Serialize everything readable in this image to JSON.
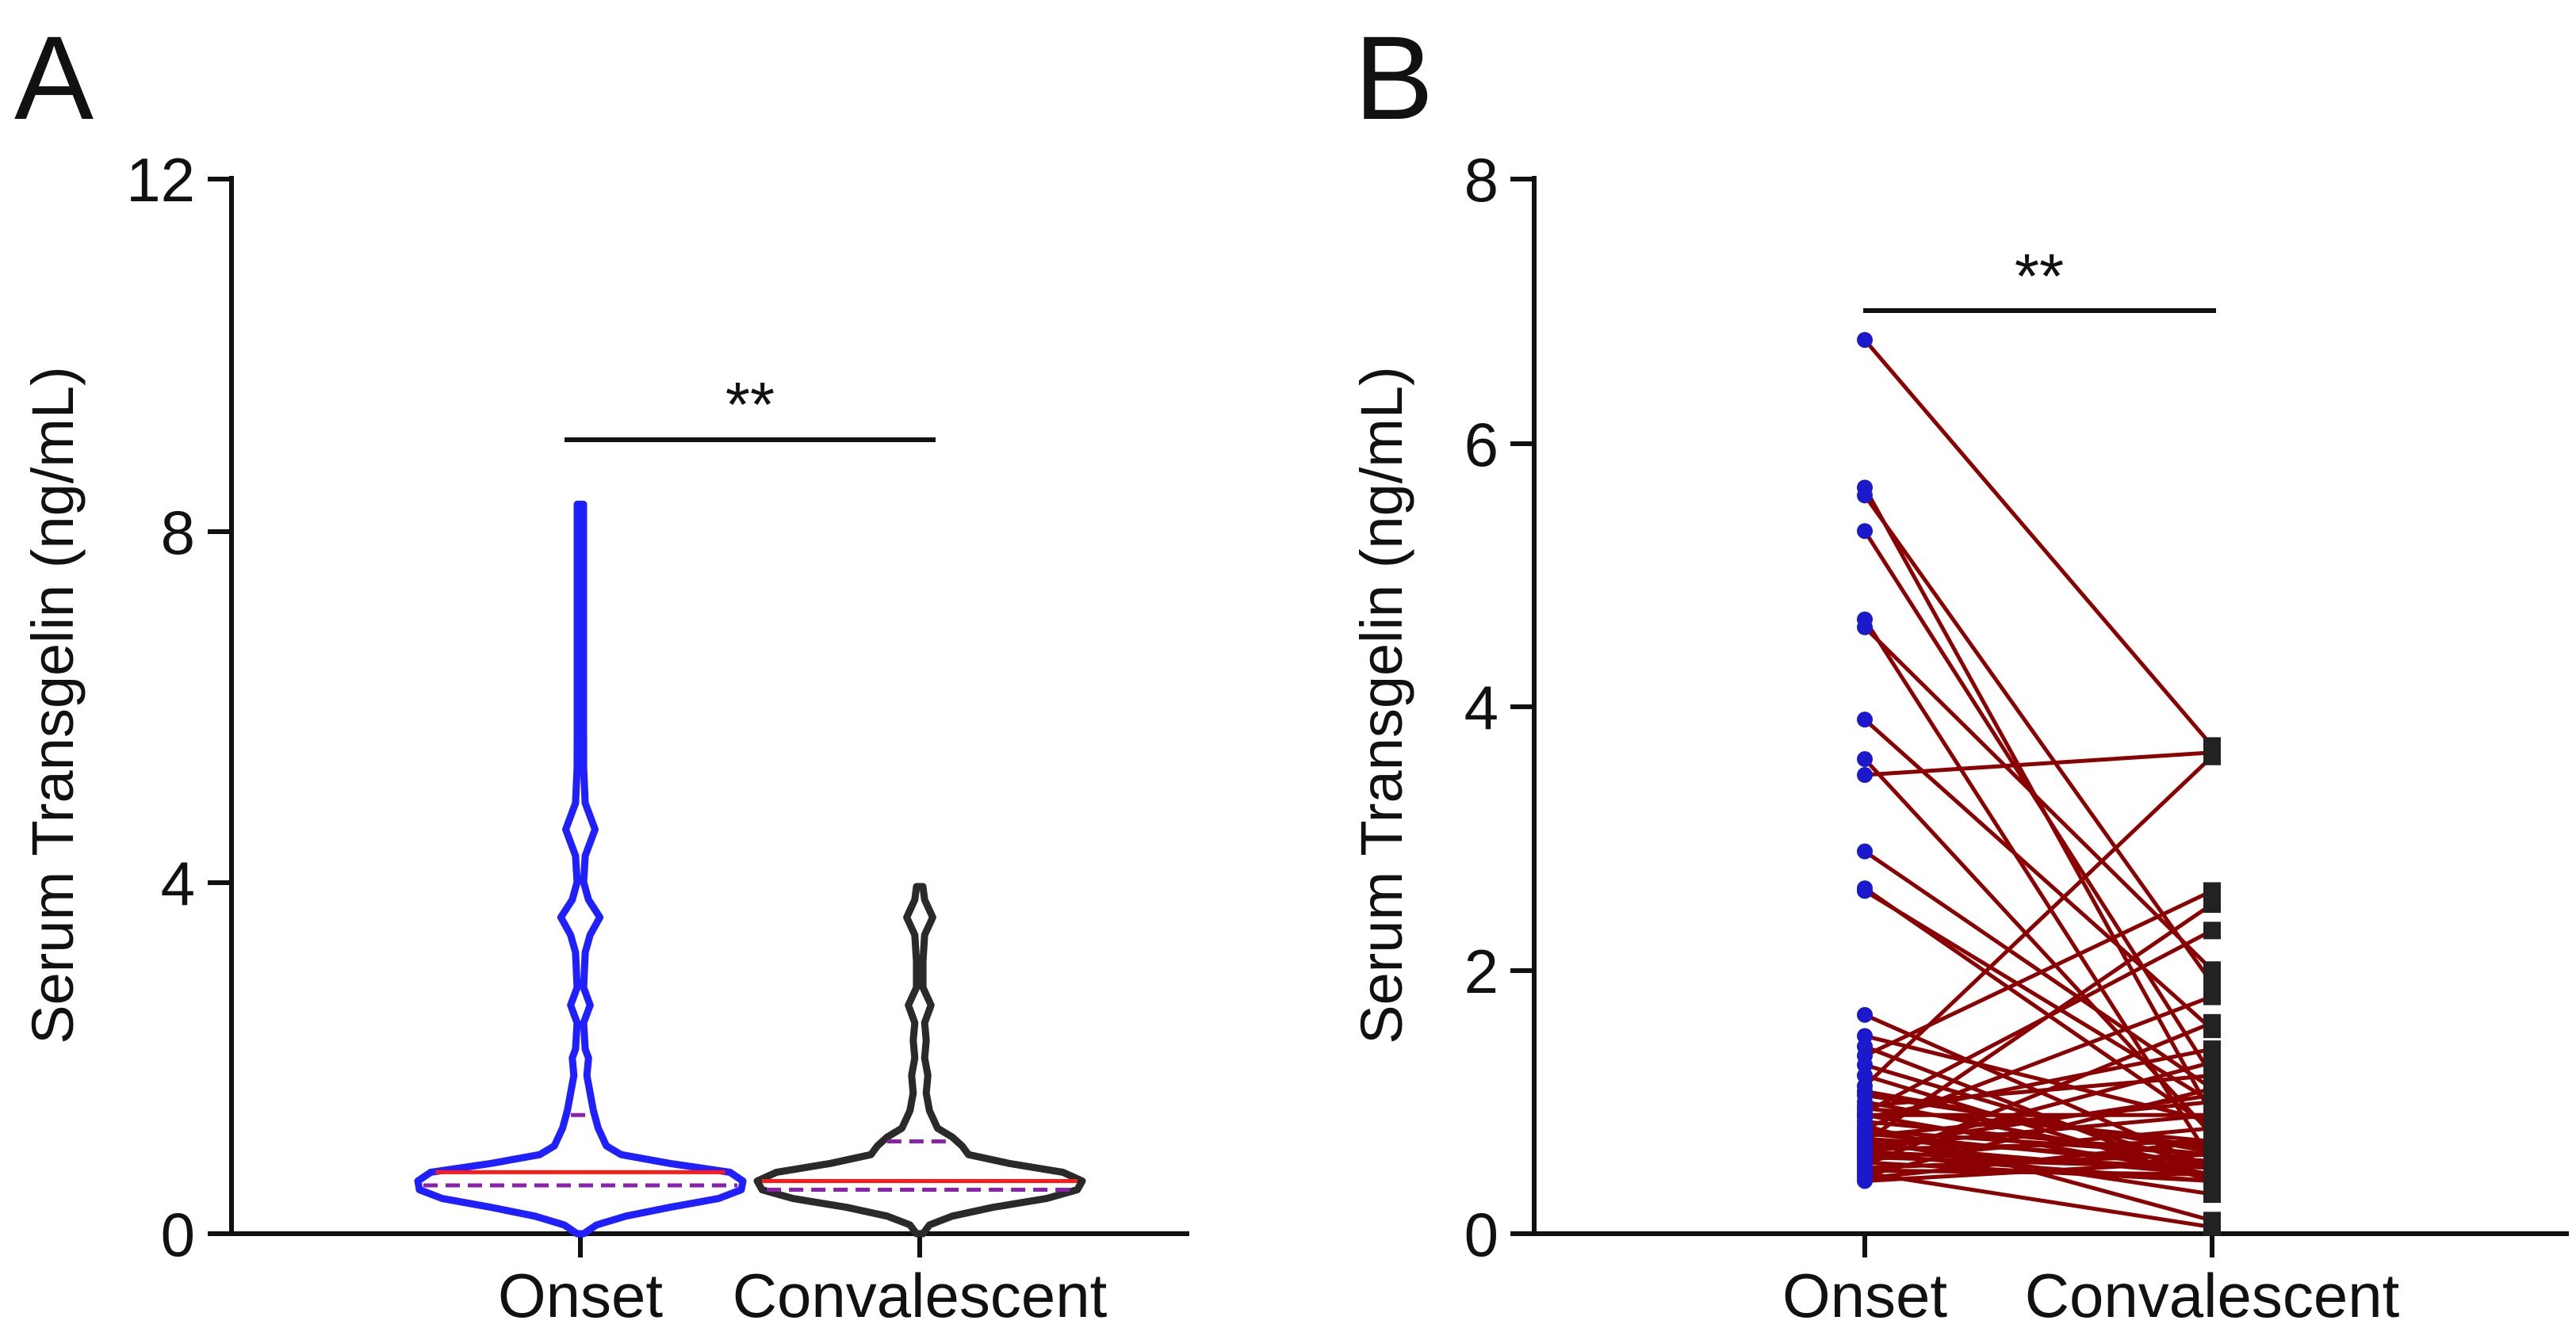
{
  "chart_data": [
    {
      "panel_label": "A",
      "type": "violin",
      "ylabel": "Serum Transgelin (ng/mL)",
      "xlabel": "",
      "ylim": [
        0,
        12
      ],
      "yticks": [
        "0",
        "4",
        "8",
        "12"
      ],
      "categories": [
        "Onset",
        "Convalescent"
      ],
      "significance": "**",
      "grid": false,
      "series": [
        {
          "name": "Onset",
          "color": "#1f1fff",
          "median": 0.7,
          "quartiles": [
            0.55,
            1.35
          ],
          "max": 8.3,
          "min": 0.0,
          "density_profile": [
            [
              0.0,
              0.02
            ],
            [
              0.1,
              0.1
            ],
            [
              0.2,
              0.28
            ],
            [
              0.3,
              0.55
            ],
            [
              0.4,
              0.85
            ],
            [
              0.5,
              0.99
            ],
            [
              0.6,
              1.0
            ],
            [
              0.7,
              0.92
            ],
            [
              0.8,
              0.55
            ],
            [
              0.9,
              0.25
            ],
            [
              1.0,
              0.16
            ],
            [
              1.2,
              0.11
            ],
            [
              1.4,
              0.08
            ],
            [
              1.6,
              0.06
            ],
            [
              1.8,
              0.04
            ],
            [
              2.0,
              0.05
            ],
            [
              2.1,
              0.03
            ],
            [
              2.4,
              0.02
            ],
            [
              2.6,
              0.06
            ],
            [
              2.8,
              0.02
            ],
            [
              3.2,
              0.03
            ],
            [
              3.4,
              0.06
            ],
            [
              3.6,
              0.12
            ],
            [
              3.8,
              0.05
            ],
            [
              4.0,
              0.02
            ],
            [
              4.3,
              0.03
            ],
            [
              4.6,
              0.09
            ],
            [
              4.9,
              0.03
            ],
            [
              5.3,
              0.02
            ],
            [
              5.8,
              0.015
            ],
            [
              6.5,
              0.015
            ],
            [
              7.2,
              0.012
            ],
            [
              8.0,
              0.012
            ],
            [
              8.3,
              0.01
            ]
          ]
        },
        {
          "name": "Convalescent",
          "color": "#2a2a2a",
          "median": 0.6,
          "quartiles": [
            0.5,
            1.05
          ],
          "max": 3.95,
          "min": 0.0,
          "density_profile": [
            [
              0.0,
              0.02
            ],
            [
              0.1,
              0.06
            ],
            [
              0.2,
              0.2
            ],
            [
              0.3,
              0.45
            ],
            [
              0.4,
              0.78
            ],
            [
              0.5,
              0.97
            ],
            [
              0.6,
              1.0
            ],
            [
              0.7,
              0.88
            ],
            [
              0.8,
              0.55
            ],
            [
              0.9,
              0.3
            ],
            [
              1.0,
              0.26
            ],
            [
              1.1,
              0.2
            ],
            [
              1.2,
              0.11
            ],
            [
              1.4,
              0.06
            ],
            [
              1.6,
              0.04
            ],
            [
              1.8,
              0.05
            ],
            [
              2.0,
              0.03
            ],
            [
              2.2,
              0.04
            ],
            [
              2.4,
              0.03
            ],
            [
              2.6,
              0.07
            ],
            [
              2.8,
              0.02
            ],
            [
              3.1,
              0.02
            ],
            [
              3.4,
              0.03
            ],
            [
              3.6,
              0.08
            ],
            [
              3.8,
              0.03
            ],
            [
              3.95,
              0.01
            ]
          ]
        }
      ]
    },
    {
      "panel_label": "B",
      "type": "paired-line",
      "ylabel": "Serum Transgelin (ng/mL)",
      "xlabel": "",
      "ylim": [
        0,
        8
      ],
      "yticks": [
        "0",
        "2",
        "4",
        "6",
        "8"
      ],
      "categories": [
        "Onset",
        "Convalescent"
      ],
      "significance": "**",
      "grid": false,
      "colors": {
        "line": "#8b0000",
        "onset_marker": "#1a1acc",
        "convalescent_marker": "#222222"
      },
      "pairs": [
        [
          6.78,
          3.7
        ],
        [
          5.66,
          0.9
        ],
        [
          5.6,
          1.9
        ],
        [
          5.33,
          1.2
        ],
        [
          4.66,
          0.55
        ],
        [
          4.6,
          2.0
        ],
        [
          3.9,
          1.55
        ],
        [
          3.6,
          0.75
        ],
        [
          3.48,
          3.65
        ],
        [
          2.9,
          1.1
        ],
        [
          2.62,
          0.8
        ],
        [
          2.6,
          1.0
        ],
        [
          1.66,
          0.5
        ],
        [
          1.5,
          0.85
        ],
        [
          1.42,
          0.4
        ],
        [
          1.35,
          2.6
        ],
        [
          1.28,
          0.5
        ],
        [
          1.2,
          0.4
        ],
        [
          1.12,
          3.62
        ],
        [
          1.05,
          0.65
        ],
        [
          1.0,
          0.5
        ],
        [
          0.97,
          1.2
        ],
        [
          0.95,
          0.7
        ],
        [
          0.92,
          2.3
        ],
        [
          0.9,
          0.45
        ],
        [
          0.88,
          1.4
        ],
        [
          0.85,
          0.6
        ],
        [
          0.82,
          0.1
        ],
        [
          0.8,
          1.8
        ],
        [
          0.78,
          0.6
        ],
        [
          0.76,
          0.5
        ],
        [
          0.74,
          1.0
        ],
        [
          0.72,
          0.55
        ],
        [
          0.7,
          2.5
        ],
        [
          0.68,
          0.45
        ],
        [
          0.66,
          0.9
        ],
        [
          0.64,
          0.7
        ],
        [
          0.62,
          0.5
        ],
        [
          0.6,
          1.3
        ],
        [
          0.58,
          0.5
        ],
        [
          0.56,
          0.8
        ],
        [
          0.54,
          0.4
        ],
        [
          0.52,
          1.6
        ],
        [
          0.5,
          0.6
        ],
        [
          0.48,
          0.45
        ],
        [
          0.46,
          0.05
        ],
        [
          0.44,
          1.1
        ],
        [
          0.42,
          0.7
        ],
        [
          0.4,
          0.55
        ],
        [
          0.9,
          0.9
        ],
        [
          1.08,
          0.62
        ],
        [
          0.66,
          1.05
        ],
        [
          0.6,
          0.4
        ],
        [
          0.7,
          0.3
        ]
      ]
    }
  ]
}
